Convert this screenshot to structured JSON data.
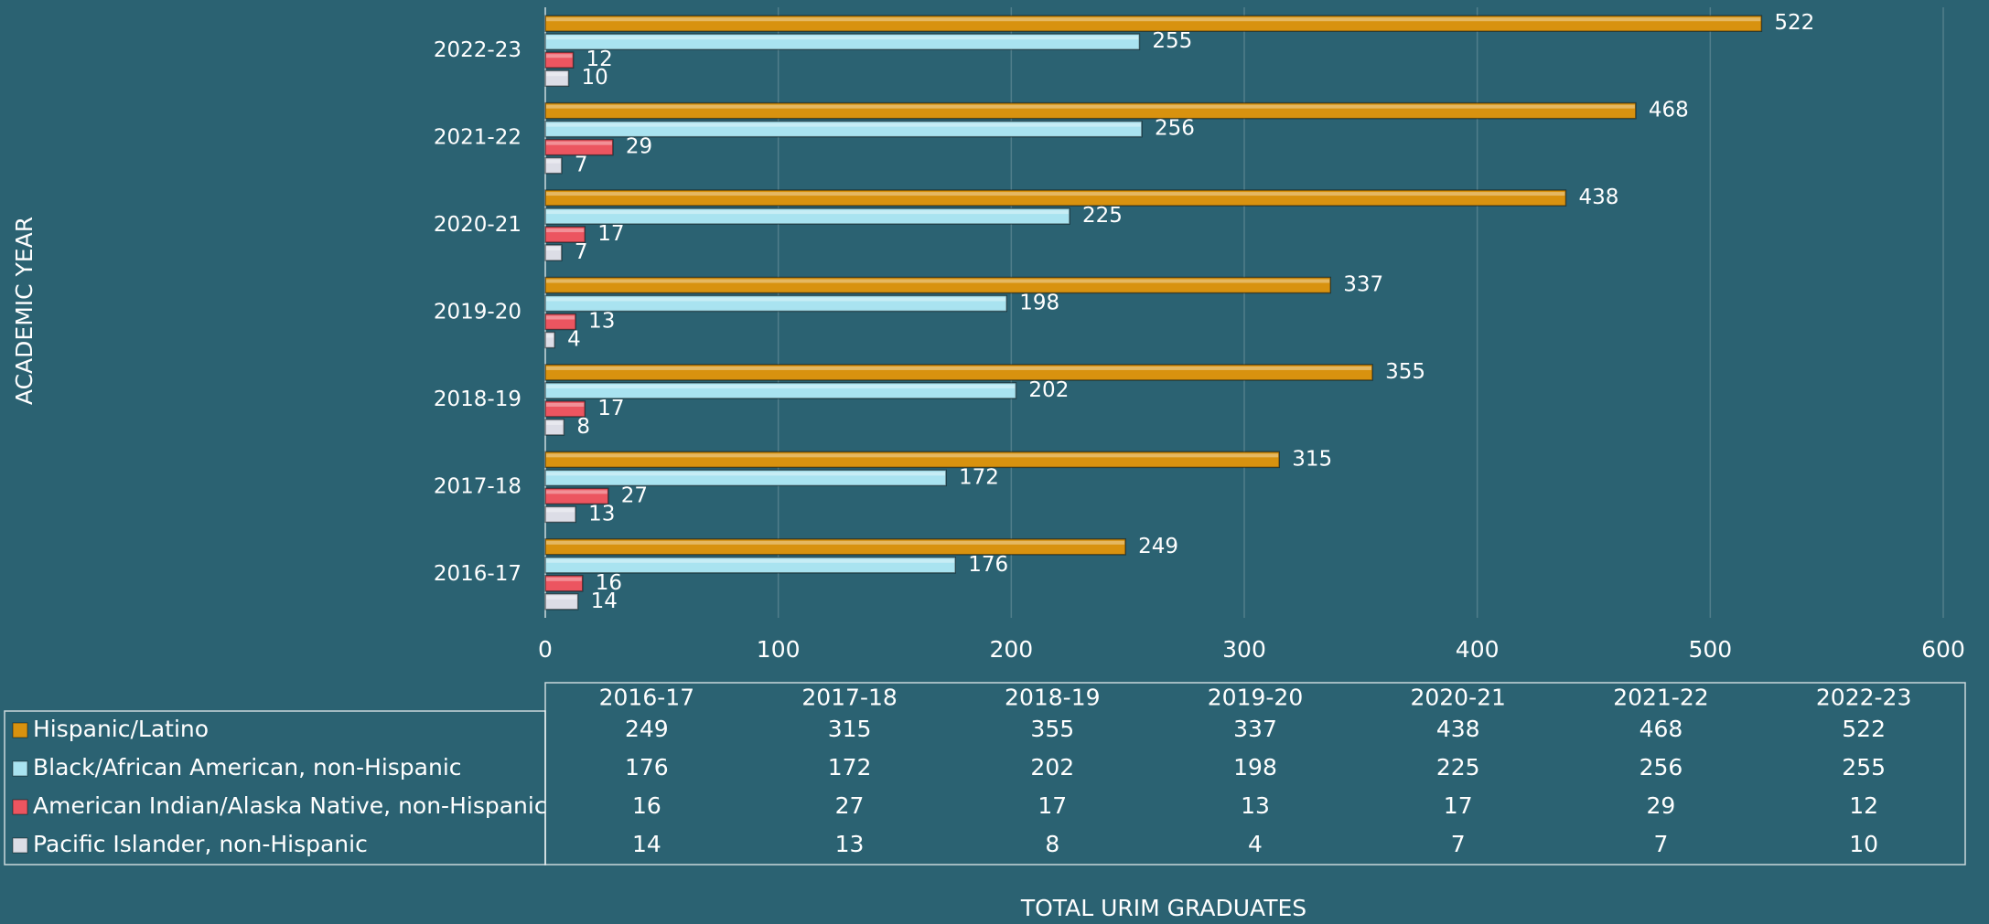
{
  "chart_data": {
    "type": "bar",
    "orientation": "horizontal",
    "x_label": "TOTAL URIM GRADUATES",
    "y_label": "ACADEMIC YEAR",
    "categories": [
      "2016-17",
      "2017-18",
      "2018-19",
      "2019-20",
      "2020-21",
      "2021-22",
      "2022-23"
    ],
    "series": [
      {
        "name": "Hispanic/Latino",
        "color": "#d8920f",
        "values": [
          249,
          315,
          355,
          337,
          438,
          468,
          522
        ]
      },
      {
        "name": "Black/African American, non-Hispanic",
        "color": "#a9e3f0",
        "values": [
          176,
          172,
          202,
          198,
          225,
          256,
          255
        ]
      },
      {
        "name": "American Indian/Alaska Native, non-Hispanic",
        "color": "#ec5560",
        "values": [
          16,
          27,
          17,
          13,
          17,
          29,
          12
        ]
      },
      {
        "name": "Pacific Islander, non-Hispanic",
        "color": "#dcdde6",
        "values": [
          14,
          13,
          8,
          4,
          7,
          7,
          10
        ]
      }
    ],
    "xlim": [
      0,
      600
    ],
    "xticks": [
      0,
      100,
      200,
      300,
      400,
      500,
      600
    ],
    "grid": true,
    "data_table": true
  }
}
